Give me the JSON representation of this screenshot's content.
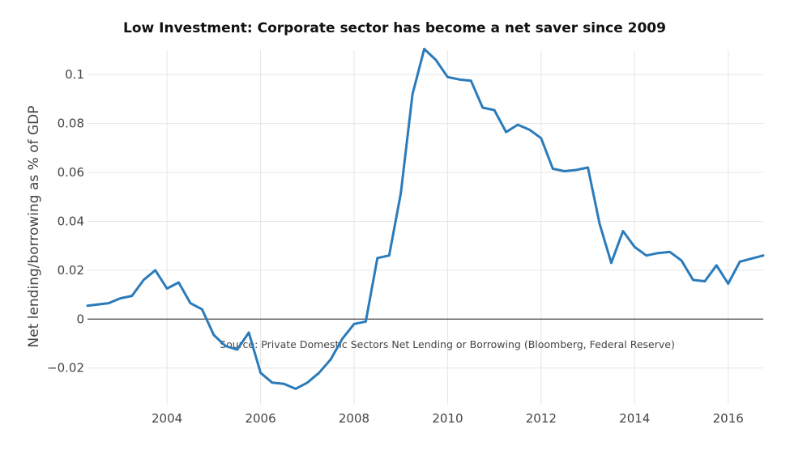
{
  "chart_data": {
    "type": "line",
    "title": "Low Investment: Corporate sector has become a net saver since 2009",
    "xlabel": "",
    "ylabel": "Net lending/borrowing as % of GDP",
    "annotation": "Source: Private Domestic Sectors Net Lending or Borrowing (Bloomberg, Federal Reserve)",
    "xlim": [
      2002.3,
      2016.75
    ],
    "ylim": [
      -0.035,
      0.11
    ],
    "x_ticks": [
      2004,
      2006,
      2008,
      2010,
      2012,
      2014,
      2016
    ],
    "x_tick_labels": [
      "2004",
      "2006",
      "2008",
      "2010",
      "2012",
      "2014",
      "2016"
    ],
    "y_ticks": [
      -0.02,
      0,
      0.02,
      0.04,
      0.06,
      0.08,
      0.1
    ],
    "y_tick_labels": [
      "−0.02",
      "0",
      "0.02",
      "0.04",
      "0.06",
      "0.08",
      "0.1"
    ],
    "grid": true,
    "zero_line": true,
    "series": [
      {
        "color": "#2b7bba",
        "x": [
          2002.3,
          2002.75,
          2003.0,
          2003.25,
          2003.5,
          2003.75,
          2004.0,
          2004.25,
          2004.5,
          2004.75,
          2005.0,
          2005.25,
          2005.5,
          2005.75,
          2006.0,
          2006.25,
          2006.5,
          2006.75,
          2007.0,
          2007.25,
          2007.5,
          2007.75,
          2008.0,
          2008.25,
          2008.5,
          2008.75,
          2009.0,
          2009.25,
          2009.5,
          2009.75,
          2010.0,
          2010.25,
          2010.5,
          2010.75,
          2011.0,
          2011.25,
          2011.5,
          2011.75,
          2012.0,
          2012.25,
          2012.5,
          2012.75,
          2013.0,
          2013.25,
          2013.5,
          2013.75,
          2014.0,
          2014.25,
          2014.5,
          2014.75,
          2015.0,
          2015.25,
          2015.5,
          2015.75,
          2016.0,
          2016.25,
          2016.75
        ],
        "y": [
          0.0055,
          0.0065,
          0.0085,
          0.0095,
          0.016,
          0.02,
          0.0125,
          0.015,
          0.0065,
          0.004,
          -0.0065,
          -0.011,
          -0.0125,
          -0.0055,
          -0.022,
          -0.026,
          -0.0265,
          -0.0285,
          -0.026,
          -0.022,
          -0.0165,
          -0.008,
          -0.002,
          -0.001,
          0.025,
          0.026,
          0.0515,
          0.092,
          0.1105,
          0.106,
          0.099,
          0.098,
          0.0975,
          0.0865,
          0.0855,
          0.0765,
          0.0795,
          0.0775,
          0.074,
          0.0615,
          0.0605,
          0.061,
          0.062,
          0.039,
          0.023,
          0.036,
          0.0295,
          0.026,
          0.027,
          0.0275,
          0.024,
          0.016,
          0.0155,
          0.022,
          0.0145,
          0.0235,
          0.026
        ]
      }
    ]
  }
}
